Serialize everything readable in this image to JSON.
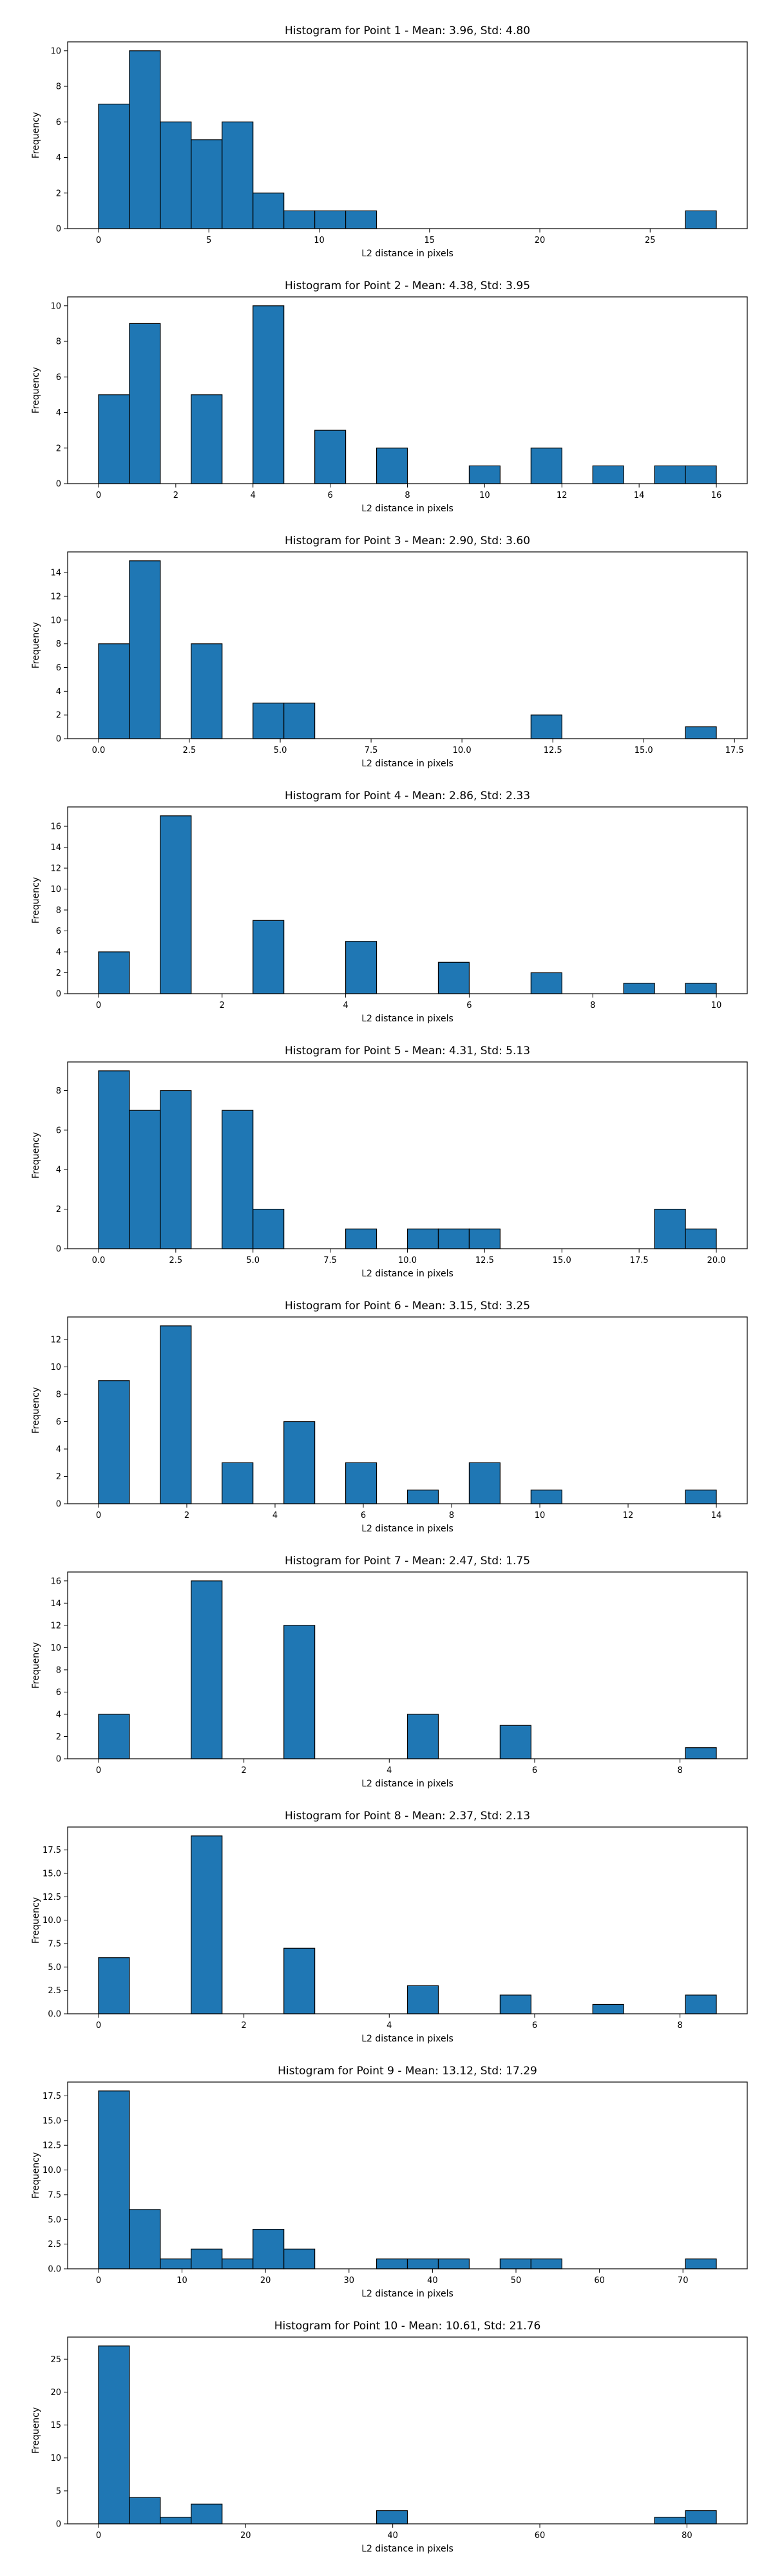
{
  "chart_data": [
    {
      "type": "bar",
      "title": "Histogram for Point 1 - Mean: 3.96, Std: 4.80",
      "xlabel": "L2 distance in pixels",
      "ylabel": "Frequency",
      "xlim": [
        -1.4,
        29.4
      ],
      "ylim": [
        0,
        10.5
      ],
      "xticks": [
        0,
        5,
        10,
        15,
        20,
        25
      ],
      "yticks": [
        0,
        2,
        4,
        6,
        8,
        10
      ],
      "grid": false,
      "bin_edges": [
        0,
        1.4,
        2.8,
        4.2,
        5.6,
        7.0,
        8.4,
        9.8,
        11.2,
        12.6,
        14.0,
        15.4,
        16.8,
        18.2,
        19.6,
        21.0,
        22.4,
        23.8,
        25.2,
        26.6,
        28.0
      ],
      "values": [
        7,
        10,
        6,
        5,
        6,
        2,
        1,
        1,
        1,
        0,
        0,
        0,
        0,
        0,
        0,
        0,
        0,
        0,
        0,
        1
      ]
    },
    {
      "type": "bar",
      "title": "Histogram for Point 2 - Mean: 4.38, Std: 3.95",
      "xlabel": "L2 distance in pixels",
      "ylabel": "Frequency",
      "xlim": [
        -0.8,
        16.8
      ],
      "ylim": [
        0,
        10.5
      ],
      "xticks": [
        0,
        2,
        4,
        6,
        8,
        10,
        12,
        14,
        16
      ],
      "yticks": [
        0,
        2,
        4,
        6,
        8,
        10
      ],
      "grid": false,
      "bin_edges": [
        0,
        0.8,
        1.6,
        2.4,
        3.2,
        4.0,
        4.8,
        5.6,
        6.4,
        7.2,
        8.0,
        8.8,
        9.6,
        10.4,
        11.2,
        12.0,
        12.8,
        13.6,
        14.4,
        15.2,
        16.0
      ],
      "values": [
        5,
        9,
        0,
        5,
        0,
        10,
        0,
        3,
        0,
        2,
        0,
        0,
        1,
        0,
        2,
        0,
        1,
        0,
        1,
        1
      ]
    },
    {
      "type": "bar",
      "title": "Histogram for Point 3 - Mean: 2.90, Std: 3.60",
      "xlabel": "L2 distance in pixels",
      "ylabel": "Frequency",
      "xlim": [
        -0.85,
        17.85
      ],
      "ylim": [
        0,
        15.75
      ],
      "xticks": [
        0.0,
        2.5,
        5.0,
        7.5,
        10.0,
        12.5,
        15.0,
        17.5
      ],
      "xtick_labels": [
        "0.0",
        "2.5",
        "5.0",
        "7.5",
        "10.0",
        "12.5",
        "15.0",
        "17.5"
      ],
      "yticks": [
        0,
        2,
        4,
        6,
        8,
        10,
        12,
        14
      ],
      "grid": false,
      "bin_edges": [
        0,
        0.85,
        1.7,
        2.55,
        3.4,
        4.25,
        5.1,
        5.95,
        6.8,
        7.65,
        8.5,
        9.35,
        10.2,
        11.05,
        11.9,
        12.75,
        13.6,
        14.45,
        15.3,
        16.15,
        17.0
      ],
      "values": [
        8,
        15,
        0,
        8,
        0,
        3,
        3,
        0,
        0,
        0,
        0,
        0,
        0,
        0,
        2,
        0,
        0,
        0,
        0,
        1
      ]
    },
    {
      "type": "bar",
      "title": "Histogram for Point 4 - Mean: 2.86, Std: 2.33",
      "xlabel": "L2 distance in pixels",
      "ylabel": "Frequency",
      "xlim": [
        -0.5,
        10.5
      ],
      "ylim": [
        0,
        17.85
      ],
      "xticks": [
        0,
        2,
        4,
        6,
        8,
        10
      ],
      "yticks": [
        0,
        2,
        4,
        6,
        8,
        10,
        12,
        14,
        16
      ],
      "grid": false,
      "bin_edges": [
        0,
        0.5,
        1.0,
        1.5,
        2.0,
        2.5,
        3.0,
        3.5,
        4.0,
        4.5,
        5.0,
        5.5,
        6.0,
        6.5,
        7.0,
        7.5,
        8.0,
        8.5,
        9.0,
        9.5,
        10.0
      ],
      "values": [
        4,
        0,
        17,
        0,
        0,
        7,
        0,
        0,
        5,
        0,
        0,
        3,
        0,
        0,
        2,
        0,
        0,
        1,
        0,
        1
      ]
    },
    {
      "type": "bar",
      "title": "Histogram for Point 5 - Mean: 4.31, Std: 5.13",
      "xlabel": "L2 distance in pixels",
      "ylabel": "Frequency",
      "xlim": [
        -1.0,
        21.0
      ],
      "ylim": [
        0,
        9.45
      ],
      "xticks": [
        0.0,
        2.5,
        5.0,
        7.5,
        10.0,
        12.5,
        15.0,
        17.5,
        20.0
      ],
      "xtick_labels": [
        "0.0",
        "2.5",
        "5.0",
        "7.5",
        "10.0",
        "12.5",
        "15.0",
        "17.5",
        "20.0"
      ],
      "yticks": [
        0,
        2,
        4,
        6,
        8
      ],
      "grid": false,
      "bin_edges": [
        0,
        1,
        2,
        3,
        4,
        5,
        6,
        7,
        8,
        9,
        10,
        11,
        12,
        13,
        14,
        15,
        16,
        17,
        18,
        19,
        20
      ],
      "values": [
        9,
        7,
        8,
        0,
        7,
        2,
        0,
        0,
        1,
        0,
        1,
        1,
        1,
        0,
        0,
        0,
        0,
        0,
        2,
        1
      ]
    },
    {
      "type": "bar",
      "title": "Histogram for Point 6 - Mean: 3.15, Std: 3.25",
      "xlabel": "L2 distance in pixels",
      "ylabel": "Frequency",
      "xlim": [
        -0.7,
        14.7
      ],
      "ylim": [
        0,
        13.65
      ],
      "xticks": [
        0,
        2,
        4,
        6,
        8,
        10,
        12,
        14
      ],
      "yticks": [
        0,
        2,
        4,
        6,
        8,
        10,
        12
      ],
      "grid": false,
      "bin_edges": [
        0,
        0.7,
        1.4,
        2.1,
        2.8,
        3.5,
        4.2,
        4.9,
        5.6,
        6.3,
        7.0,
        7.7,
        8.4,
        9.1,
        9.8,
        10.5,
        11.2,
        11.9,
        12.6,
        13.3,
        14.0
      ],
      "values": [
        9,
        0,
        13,
        0,
        3,
        0,
        6,
        0,
        3,
        0,
        1,
        0,
        3,
        0,
        1,
        0,
        0,
        0,
        0,
        1
      ]
    },
    {
      "type": "bar",
      "title": "Histogram for Point 7 - Mean: 2.47, Std: 1.75",
      "xlabel": "L2 distance in pixels",
      "ylabel": "Frequency",
      "xlim": [
        -0.425,
        8.925
      ],
      "ylim": [
        0,
        16.8
      ],
      "xticks": [
        0,
        2,
        4,
        6,
        8
      ],
      "yticks": [
        0,
        2,
        4,
        6,
        8,
        10,
        12,
        14,
        16
      ],
      "grid": false,
      "bin_edges": [
        0,
        0.425,
        0.85,
        1.275,
        1.7,
        2.125,
        2.55,
        2.975,
        3.4,
        3.825,
        4.25,
        4.675,
        5.1,
        5.525,
        5.95,
        6.375,
        6.8,
        7.225,
        7.65,
        8.075,
        8.5
      ],
      "values": [
        4,
        0,
        0,
        16,
        0,
        0,
        12,
        0,
        0,
        0,
        4,
        0,
        0,
        3,
        0,
        0,
        0,
        0,
        0,
        1
      ]
    },
    {
      "type": "bar",
      "title": "Histogram for Point 8 - Mean: 2.37, Std: 2.13",
      "xlabel": "L2 distance in pixels",
      "ylabel": "Frequency",
      "xlim": [
        -0.425,
        8.925
      ],
      "ylim": [
        0,
        19.95
      ],
      "xticks": [
        0,
        2,
        4,
        6,
        8
      ],
      "yticks": [
        0.0,
        2.5,
        5.0,
        7.5,
        10.0,
        12.5,
        15.0,
        17.5
      ],
      "ytick_labels": [
        "0.0",
        "2.5",
        "5.0",
        "7.5",
        "10.0",
        "12.5",
        "15.0",
        "17.5"
      ],
      "grid": false,
      "bin_edges": [
        0,
        0.425,
        0.85,
        1.275,
        1.7,
        2.125,
        2.55,
        2.975,
        3.4,
        3.825,
        4.25,
        4.675,
        5.1,
        5.525,
        5.95,
        6.375,
        6.8,
        7.225,
        7.65,
        8.075,
        8.5
      ],
      "values": [
        6,
        0,
        0,
        19,
        0,
        0,
        7,
        0,
        0,
        0,
        3,
        0,
        0,
        2,
        0,
        0,
        1,
        0,
        0,
        2
      ]
    },
    {
      "type": "bar",
      "title": "Histogram for Point 9 - Mean: 13.12, Std: 17.29",
      "xlabel": "L2 distance in pixels",
      "ylabel": "Frequency",
      "xlim": [
        -3.7,
        77.7
      ],
      "ylim": [
        0,
        18.9
      ],
      "xticks": [
        0,
        10,
        20,
        30,
        40,
        50,
        60,
        70
      ],
      "yticks": [
        0.0,
        2.5,
        5.0,
        7.5,
        10.0,
        12.5,
        15.0,
        17.5
      ],
      "ytick_labels": [
        "0.0",
        "2.5",
        "5.0",
        "7.5",
        "10.0",
        "12.5",
        "15.0",
        "17.5"
      ],
      "grid": false,
      "bin_edges": [
        0,
        3.7,
        7.4,
        11.1,
        14.8,
        18.5,
        22.2,
        25.9,
        29.6,
        33.3,
        37.0,
        40.7,
        44.4,
        48.1,
        51.8,
        55.5,
        59.2,
        62.9,
        66.6,
        70.3,
        74.0
      ],
      "values": [
        18,
        6,
        1,
        2,
        1,
        4,
        2,
        0,
        0,
        1,
        1,
        1,
        0,
        1,
        1,
        0,
        0,
        0,
        0,
        1
      ]
    },
    {
      "type": "bar",
      "title": "Histogram for Point 10 - Mean: 10.61, Std: 21.76",
      "xlabel": "L2 distance in pixels",
      "ylabel": "Frequency",
      "xlim": [
        -4.2,
        88.2
      ],
      "ylim": [
        0,
        28.35
      ],
      "xticks": [
        0,
        20,
        40,
        60,
        80
      ],
      "yticks": [
        0,
        5,
        10,
        15,
        20,
        25
      ],
      "grid": false,
      "bin_edges": [
        0,
        4.2,
        8.4,
        12.6,
        16.8,
        21.0,
        25.2,
        29.4,
        33.6,
        37.8,
        42.0,
        46.2,
        50.4,
        54.6,
        58.8,
        63.0,
        67.2,
        71.4,
        75.6,
        79.8,
        84.0
      ],
      "values": [
        27,
        4,
        1,
        3,
        0,
        0,
        0,
        0,
        0,
        2,
        0,
        0,
        0,
        0,
        0,
        0,
        0,
        0,
        1,
        2
      ]
    }
  ],
  "colors": {
    "bar_fill": "#1f77b4",
    "bar_edge": "#000000",
    "axis": "#000000",
    "background": "#ffffff"
  }
}
